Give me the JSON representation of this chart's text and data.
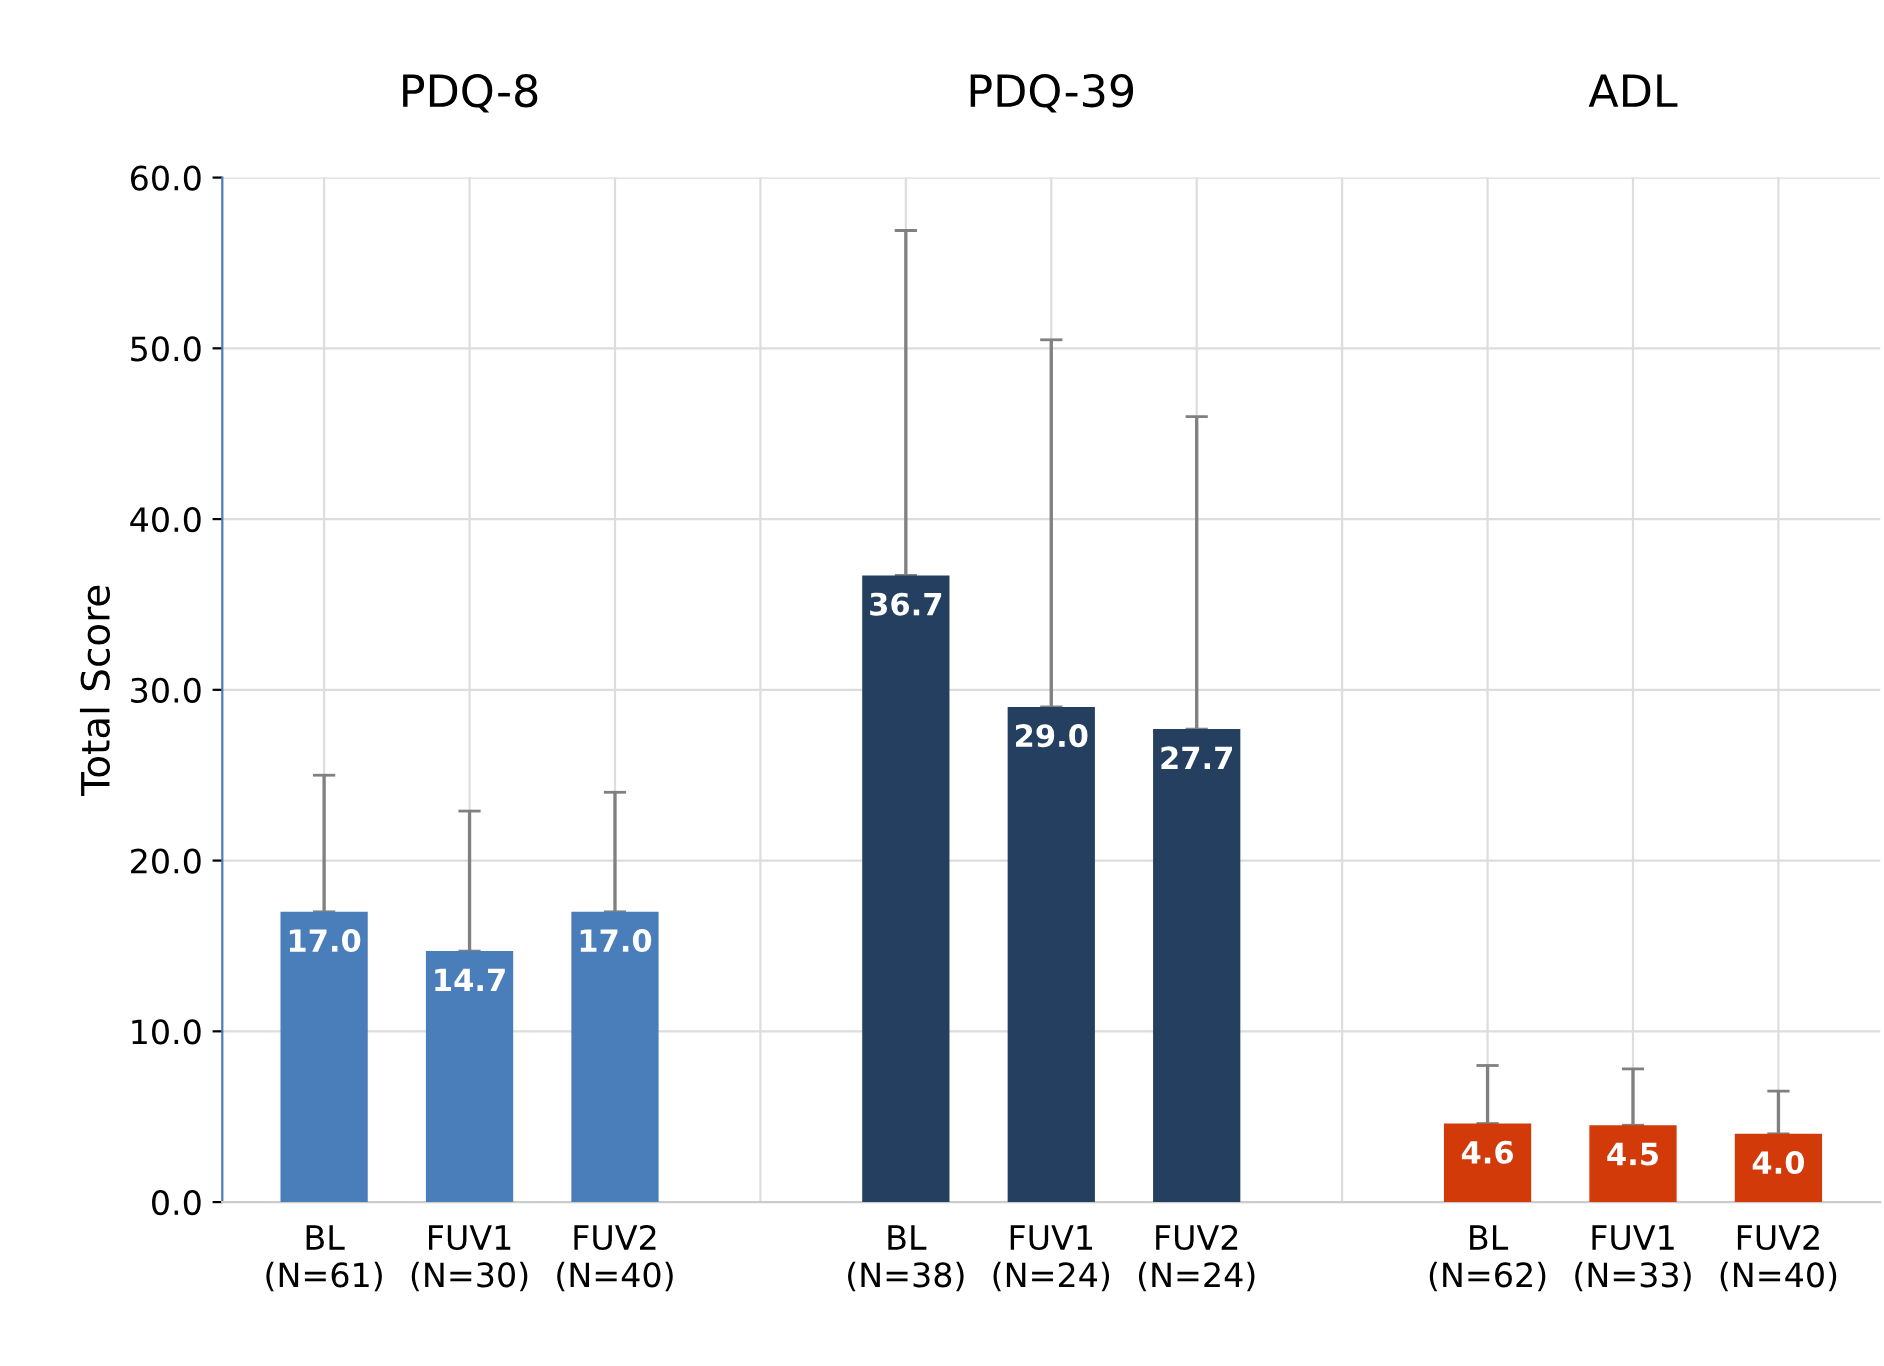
{
  "chart_data": {
    "type": "bar",
    "ylabel": "Total Score",
    "categories": [
      "BL\n(N=61)",
      "FUV1\n(N=30)",
      "FUV2\n(N=40)",
      null,
      "BL\n(N=38)",
      "FUV1\n(N=24)",
      "FUV2\n(N=24)",
      null,
      "BL\n(N=62)",
      "FUV1\n(N=33)",
      "FUV2\n(N=40)"
    ],
    "series": [
      {
        "color": "#4a7ebb",
        "values": [
          17.0,
          14.7,
          17.0,
          null,
          null,
          null,
          null,
          null,
          null,
          null,
          null
        ],
        "value_labels": [
          "17.0",
          "14.7",
          "17.0",
          null,
          null,
          null,
          null,
          null,
          null,
          null,
          null
        ],
        "errors": [
          [
            17.0,
            25.0
          ],
          [
            14.7,
            22.9
          ],
          [
            17.0,
            24.0
          ],
          null,
          null,
          null,
          null,
          null,
          null,
          null,
          null
        ]
      },
      {
        "color": "#243f60",
        "values": [
          null,
          null,
          null,
          null,
          36.7,
          29.0,
          27.7,
          null,
          null,
          null,
          null
        ],
        "value_labels": [
          null,
          null,
          null,
          null,
          "36.7",
          "29.0",
          "27.7",
          null,
          null,
          null,
          null
        ],
        "errors": [
          null,
          null,
          null,
          null,
          [
            36.7,
            56.9
          ],
          [
            29.0,
            50.5
          ],
          [
            27.7,
            46.0
          ],
          null,
          null,
          null,
          null
        ]
      },
      {
        "color": "#d23a0a",
        "values": [
          null,
          null,
          null,
          null,
          null,
          null,
          null,
          null,
          4.6,
          4.5,
          4.0
        ],
        "value_labels": [
          null,
          null,
          null,
          null,
          null,
          null,
          null,
          null,
          "4.6",
          "4.5",
          "4.0"
        ],
        "errors": [
          null,
          null,
          null,
          null,
          null,
          null,
          null,
          null,
          [
            4.6,
            8.0
          ],
          [
            4.5,
            7.8
          ],
          [
            4.0,
            6.5
          ]
        ]
      }
    ],
    "annotations": [
      "PDQ-8",
      "PDQ-39",
      "ADL"
    ],
    "ylim": [
      0,
      60
    ],
    "yticks": [
      {
        "value": 0,
        "label": "0.0"
      },
      {
        "value": 10,
        "label": "10.0"
      },
      {
        "value": 20,
        "label": "20.0"
      },
      {
        "value": 30,
        "label": "30.0"
      },
      {
        "value": 40,
        "label": "40.0"
      },
      {
        "value": 50,
        "label": "50.0"
      },
      {
        "value": 60,
        "label": "60.0"
      }
    ],
    "grid": true,
    "legend": false
  }
}
